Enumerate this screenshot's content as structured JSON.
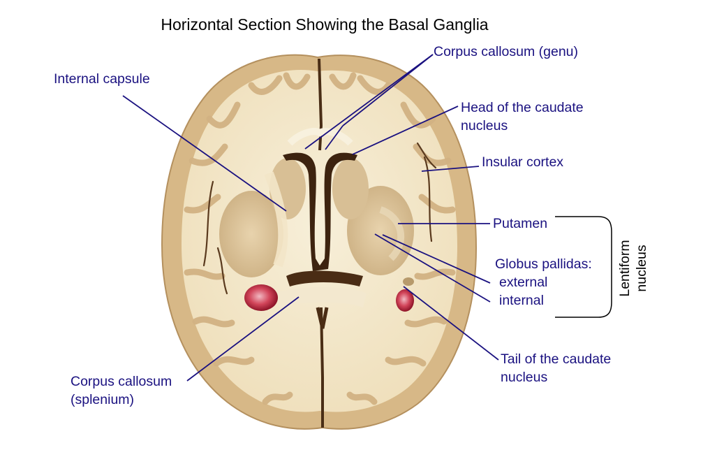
{
  "title": "Horizontal Section Showing the Basal Ganglia",
  "colors": {
    "leader_line": "#1a1180",
    "label_text": "#1a1180",
    "white_matter": "#f4ead0",
    "gray_matter": "#d9b98a",
    "red_structure": "#c8283c"
  },
  "labels": {
    "internal_capsule": "Internal capsule",
    "genu": "Corpus callosum (genu)",
    "caudate_head": [
      "Head of the caudate",
      "nucleus"
    ],
    "insular": "Insular cortex",
    "putamen": "Putamen",
    "globus": [
      "Globus pallidas:",
      "external",
      "internal"
    ],
    "lentiform": [
      "Lentiform",
      "nucleus"
    ],
    "caudate_tail": [
      "Tail of the caudate",
      "nucleus"
    ],
    "splenium": [
      "Corpus callosum",
      "(splenium)"
    ]
  }
}
